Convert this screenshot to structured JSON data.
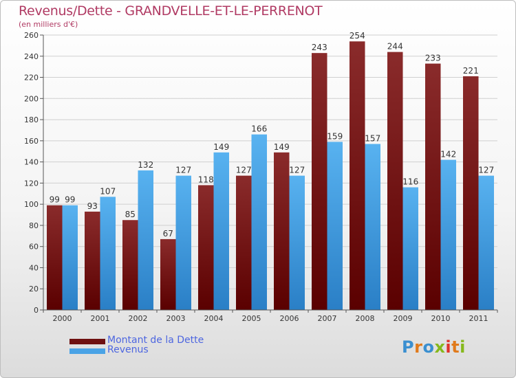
{
  "chart_data": {
    "type": "bar",
    "title": "Revenus/Dette - GRANDVELLE-ET-LE-PERRENOT",
    "subtitle": "(en milliers d'€)",
    "categories": [
      "2000",
      "2001",
      "2002",
      "2003",
      "2004",
      "2005",
      "2006",
      "2007",
      "2008",
      "2009",
      "2010",
      "2011"
    ],
    "series": [
      {
        "name": "Montant de la Dette",
        "color": "#7a1515",
        "values": [
          99,
          93,
          85,
          67,
          118,
          127,
          149,
          243,
          254,
          244,
          233,
          221
        ]
      },
      {
        "name": "Revenus",
        "color": "#4aa3e6",
        "values": [
          99,
          107,
          132,
          127,
          149,
          166,
          127,
          159,
          157,
          116,
          142,
          127
        ]
      }
    ],
    "ylim": [
      0,
      260
    ],
    "yticks": [
      0,
      20,
      40,
      60,
      80,
      100,
      120,
      140,
      160,
      180,
      200,
      220,
      240,
      260
    ],
    "grid": true,
    "legend_position": "bottom-left"
  },
  "logo": {
    "text": "Proxiti",
    "letters": [
      {
        "ch": "P",
        "color": "#3a8fd0"
      },
      {
        "ch": "r",
        "color": "#e07a1c"
      },
      {
        "ch": "o",
        "color": "#3a8fd0"
      },
      {
        "ch": "x",
        "color": "#86b81c"
      },
      {
        "ch": "i",
        "color": "#e0322a"
      },
      {
        "ch": "t",
        "color": "#e07a1c"
      },
      {
        "ch": "i",
        "color": "#86b81c"
      }
    ]
  }
}
